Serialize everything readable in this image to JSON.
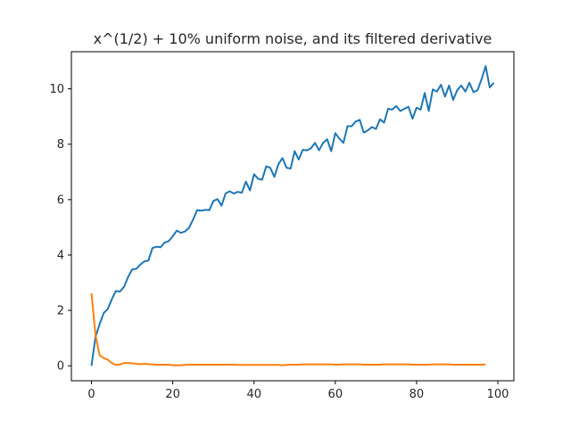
{
  "chart_data": {
    "type": "line",
    "title": "x^(1/2) + 10% uniform noise, and its filtered derivative",
    "xlabel": "",
    "ylabel": "",
    "xlim": [
      -4.95,
      103.95
    ],
    "ylim": [
      -0.54,
      11.34
    ],
    "xticks": [
      0,
      20,
      40,
      60,
      80,
      100
    ],
    "yticks": [
      0,
      2,
      4,
      6,
      8,
      10
    ],
    "grid": false,
    "legend": "none",
    "series": [
      {
        "color": "#1f77b4",
        "x": [
          0,
          1,
          2,
          3,
          4,
          5,
          6,
          7,
          8,
          9,
          10,
          11,
          12,
          13,
          14,
          15,
          16,
          17,
          18,
          19,
          20,
          21,
          22,
          23,
          24,
          25,
          26,
          27,
          28,
          29,
          30,
          31,
          32,
          33,
          34,
          35,
          36,
          37,
          38,
          39,
          40,
          41,
          42,
          43,
          44,
          45,
          46,
          47,
          48,
          49,
          50,
          51,
          52,
          53,
          54,
          55,
          56,
          57,
          58,
          59,
          60,
          61,
          62,
          63,
          64,
          65,
          66,
          67,
          68,
          69,
          70,
          71,
          72,
          73,
          74,
          75,
          76,
          77,
          78,
          79,
          80,
          81,
          82,
          83,
          84,
          85,
          86,
          87,
          88,
          89,
          90,
          91,
          92,
          93,
          94,
          95,
          96,
          97,
          98,
          99
        ],
        "values": [
          0.0,
          1.05,
          1.5,
          1.9,
          2.05,
          2.4,
          2.7,
          2.68,
          2.85,
          3.2,
          3.48,
          3.5,
          3.65,
          3.77,
          3.8,
          4.25,
          4.3,
          4.28,
          4.45,
          4.5,
          4.68,
          4.88,
          4.8,
          4.85,
          4.98,
          5.28,
          5.62,
          5.6,
          5.63,
          5.62,
          5.95,
          6.02,
          5.78,
          6.22,
          6.3,
          6.22,
          6.28,
          6.25,
          6.65,
          6.33,
          6.92,
          6.75,
          6.72,
          7.2,
          7.15,
          6.82,
          7.28,
          7.5,
          7.15,
          7.12,
          7.75,
          7.45,
          7.8,
          7.78,
          7.85,
          8.05,
          7.78,
          8.05,
          8.18,
          7.75,
          8.4,
          8.2,
          8.05,
          8.65,
          8.65,
          8.82,
          8.88,
          8.42,
          8.5,
          8.62,
          8.55,
          8.9,
          8.78,
          9.28,
          9.25,
          9.38,
          9.2,
          9.28,
          9.35,
          8.92,
          9.32,
          9.25,
          9.85,
          9.2,
          9.98,
          9.9,
          10.15,
          9.72,
          10.12,
          9.6,
          9.95,
          10.12,
          9.9,
          10.22,
          9.88,
          9.95,
          10.35,
          10.82,
          10.05,
          10.22
        ]
      },
      {
        "color": "#ff7f0e",
        "x": [
          0,
          1,
          2,
          3,
          4,
          5,
          6,
          7,
          8,
          9,
          10,
          11,
          12,
          13,
          14,
          15,
          16,
          17,
          18,
          19,
          20,
          21,
          22,
          23,
          24,
          25,
          26,
          27,
          28,
          29,
          30,
          31,
          32,
          33,
          34,
          35,
          36,
          37,
          38,
          39,
          40,
          41,
          42,
          43,
          44,
          45,
          46,
          47,
          48,
          49,
          50,
          51,
          52,
          53,
          54,
          55,
          56,
          57,
          58,
          59,
          60,
          61,
          62,
          63,
          64,
          65,
          66,
          67,
          68,
          69,
          70,
          71,
          72,
          73,
          74,
          75,
          76,
          77,
          78,
          79,
          80,
          81,
          82,
          83,
          84,
          85,
          86,
          87,
          88,
          89,
          90,
          91,
          92,
          93,
          94,
          95,
          96,
          97
        ],
        "values": [
          2.62,
          1.1,
          0.38,
          0.28,
          0.22,
          0.1,
          0.03,
          0.05,
          0.1,
          0.1,
          0.09,
          0.07,
          0.06,
          0.07,
          0.06,
          0.05,
          0.04,
          0.04,
          0.04,
          0.04,
          0.02,
          0.02,
          0.02,
          0.03,
          0.04,
          0.04,
          0.04,
          0.04,
          0.04,
          0.04,
          0.04,
          0.04,
          0.04,
          0.04,
          0.04,
          0.04,
          0.03,
          0.03,
          0.03,
          0.03,
          0.03,
          0.03,
          0.03,
          0.03,
          0.03,
          0.03,
          0.03,
          0.02,
          0.03,
          0.04,
          0.04,
          0.04,
          0.05,
          0.05,
          0.05,
          0.05,
          0.05,
          0.05,
          0.05,
          0.05,
          0.04,
          0.04,
          0.05,
          0.05,
          0.05,
          0.05,
          0.05,
          0.04,
          0.04,
          0.04,
          0.04,
          0.04,
          0.05,
          0.05,
          0.05,
          0.05,
          0.05,
          0.05,
          0.05,
          0.04,
          0.04,
          0.04,
          0.04,
          0.04,
          0.05,
          0.05,
          0.05,
          0.05,
          0.05,
          0.04,
          0.04,
          0.04,
          0.04,
          0.04,
          0.04,
          0.04,
          0.04,
          0.05
        ]
      }
    ]
  }
}
